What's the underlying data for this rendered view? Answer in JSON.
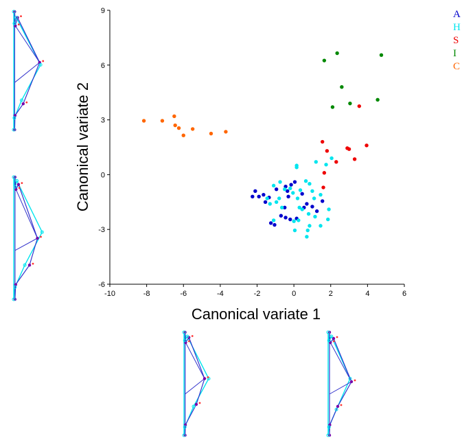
{
  "chart_data": {
    "type": "scatter",
    "title": "",
    "xlabel": "Canonical variate 1",
    "ylabel": "Canonical variate 2",
    "xlim": [
      -10,
      6
    ],
    "ylim": [
      -6,
      9
    ],
    "xticks": [
      "-10",
      "-8",
      "-6",
      "-4",
      "-2",
      "0",
      "2",
      "4",
      "6"
    ],
    "yticks": [
      "-6",
      "-3",
      "0",
      "3",
      "6",
      "9"
    ],
    "grid": false,
    "legend_position": "top-right",
    "series": [
      {
        "name": "A",
        "color": "#0000cc",
        "points": [
          [
            -2.1,
            -0.9
          ],
          [
            -2.25,
            -1.2
          ],
          [
            -1.9,
            -1.2
          ],
          [
            -1.65,
            -1.1
          ],
          [
            -1.35,
            -1.25
          ],
          [
            -1.55,
            -1.5
          ],
          [
            -1.25,
            -2.65
          ],
          [
            -1.05,
            -2.75
          ],
          [
            -0.95,
            -0.8
          ],
          [
            -0.7,
            -2.25
          ],
          [
            -0.45,
            -0.65
          ],
          [
            -0.15,
            -0.55
          ],
          [
            -0.35,
            -0.9
          ],
          [
            -0.5,
            -1.8
          ],
          [
            -0.45,
            -2.35
          ],
          [
            -0.2,
            -2.45
          ],
          [
            0.15,
            -2.4
          ],
          [
            0.05,
            -0.4
          ],
          [
            0.45,
            -1.05
          ],
          [
            0.7,
            -1.6
          ],
          [
            0.55,
            -1.8
          ],
          [
            1.0,
            -1.75
          ],
          [
            1.25,
            -2.0
          ],
          [
            1.55,
            -1.45
          ],
          [
            -0.3,
            -1.2
          ]
        ]
      },
      {
        "name": "H",
        "color": "#00e5ee",
        "points": [
          [
            0.15,
            0.5
          ],
          [
            0.15,
            0.4
          ],
          [
            -0.75,
            -0.4
          ],
          [
            -0.5,
            -0.8
          ],
          [
            -0.8,
            -1.3
          ],
          [
            -1.1,
            -0.6
          ],
          [
            -1.45,
            -1.3
          ],
          [
            -1.3,
            -1.6
          ],
          [
            -1.1,
            -2.5
          ],
          [
            -0.65,
            -1.8
          ],
          [
            -0.2,
            -0.75
          ],
          [
            -0.05,
            -1.0
          ],
          [
            0.2,
            -1.3
          ],
          [
            0.35,
            -0.85
          ],
          [
            0.65,
            -0.35
          ],
          [
            0.85,
            -0.5
          ],
          [
            1.0,
            -0.9
          ],
          [
            1.1,
            -1.3
          ],
          [
            0.3,
            -1.8
          ],
          [
            0.45,
            -1.9
          ],
          [
            0.8,
            -2.15
          ],
          [
            1.15,
            -2.3
          ],
          [
            0.85,
            -2.8
          ],
          [
            0.75,
            -3.05
          ],
          [
            0.7,
            -3.4
          ],
          [
            0.0,
            -2.55
          ],
          [
            0.05,
            -3.05
          ],
          [
            0.25,
            -2.5
          ],
          [
            1.45,
            -1.1
          ],
          [
            1.2,
            0.7
          ],
          [
            1.75,
            0.55
          ],
          [
            1.9,
            -1.9
          ],
          [
            1.85,
            -2.45
          ],
          [
            1.45,
            -2.8
          ],
          [
            2.05,
            0.9
          ],
          [
            -0.95,
            -1.5
          ]
        ]
      },
      {
        "name": "S",
        "color": "#ee0000",
        "points": [
          [
            1.55,
            1.8
          ],
          [
            1.8,
            1.3
          ],
          [
            1.65,
            0.1
          ],
          [
            1.6,
            -0.7
          ],
          [
            2.3,
            0.7
          ],
          [
            2.9,
            1.45
          ],
          [
            3.0,
            1.4
          ],
          [
            3.3,
            0.85
          ],
          [
            3.95,
            1.6
          ],
          [
            3.55,
            3.75
          ]
        ]
      },
      {
        "name": "I",
        "color": "#008800",
        "points": [
          [
            1.65,
            6.25
          ],
          [
            2.35,
            6.65
          ],
          [
            4.75,
            6.55
          ],
          [
            2.6,
            4.8
          ],
          [
            3.05,
            3.9
          ],
          [
            2.1,
            3.7
          ],
          [
            4.55,
            4.1
          ]
        ]
      },
      {
        "name": "C",
        "color": "#ff6600",
        "points": [
          [
            -8.15,
            2.95
          ],
          [
            -7.15,
            2.95
          ],
          [
            -6.5,
            3.2
          ],
          [
            -6.45,
            2.7
          ],
          [
            -6.25,
            2.55
          ],
          [
            -6.0,
            2.15
          ],
          [
            -5.5,
            2.5
          ],
          [
            -4.5,
            2.25
          ],
          [
            -3.7,
            2.35
          ]
        ]
      }
    ]
  },
  "legend": [
    {
      "label": "A",
      "color": "#0000cc"
    },
    {
      "label": "H",
      "color": "#00e5ee"
    },
    {
      "label": "S",
      "color": "#ee0000"
    },
    {
      "label": "I",
      "color": "#008800"
    },
    {
      "label": "C",
      "color": "#ff6600"
    }
  ],
  "colors": {
    "consensus": "#00e5ee",
    "variant": "#3333cc",
    "marker_red": "#ff3333",
    "marker_purple": "#7700aa"
  },
  "shape_glyphs": {
    "left_top": {
      "label": "Shape diagram (left, upper)",
      "consensus": [
        [
          0,
          0
        ],
        [
          0.02,
          0.1
        ],
        [
          0.08,
          0.05
        ],
        [
          0.85,
          0.45
        ],
        [
          0.25,
          0.75
        ],
        [
          0.02,
          0.9
        ],
        [
          0,
          1
        ],
        [
          0,
          0
        ]
      ],
      "variant": [
        [
          0.03,
          0
        ],
        [
          0.05,
          0.12
        ],
        [
          0.12,
          0.05
        ],
        [
          0.82,
          0.43
        ],
        [
          0.3,
          0.78
        ],
        [
          0.04,
          0.88
        ],
        [
          0.03,
          1
        ],
        [
          0.03,
          0
        ]
      ]
    },
    "left_bottom": {
      "label": "Shape diagram (left, lower)",
      "consensus": [
        [
          0,
          0
        ],
        [
          0.04,
          0.08
        ],
        [
          0.1,
          0.03
        ],
        [
          0.9,
          0.45
        ],
        [
          0.35,
          0.72
        ],
        [
          0.04,
          0.9
        ],
        [
          0,
          1
        ],
        [
          0,
          0
        ]
      ],
      "variant": [
        [
          0.04,
          0
        ],
        [
          0.07,
          0.1
        ],
        [
          0.15,
          0.06
        ],
        [
          0.75,
          0.5
        ],
        [
          0.5,
          0.72
        ],
        [
          0.06,
          0.88
        ],
        [
          0.04,
          1
        ],
        [
          0.04,
          0
        ]
      ]
    },
    "bottom_center": {
      "label": "Shape diagram (bottom, centre)",
      "consensus": [
        [
          0,
          0
        ],
        [
          0.03,
          0.08
        ],
        [
          0.12,
          0.04
        ],
        [
          0.9,
          0.45
        ],
        [
          0.35,
          0.72
        ],
        [
          0.03,
          0.92
        ],
        [
          0,
          1
        ],
        [
          0,
          0
        ]
      ],
      "variant": [
        [
          0.04,
          0
        ],
        [
          0.06,
          0.1
        ],
        [
          0.18,
          0.05
        ],
        [
          0.75,
          0.45
        ],
        [
          0.45,
          0.7
        ],
        [
          0.05,
          0.9
        ],
        [
          0.04,
          1
        ],
        [
          0.04,
          0
        ]
      ]
    },
    "bottom_right": {
      "label": "Shape diagram (bottom, right)",
      "consensus": [
        [
          0,
          0
        ],
        [
          0.03,
          0.08
        ],
        [
          0.12,
          0.04
        ],
        [
          0.8,
          0.45
        ],
        [
          0.3,
          0.75
        ],
        [
          0.03,
          0.92
        ],
        [
          0,
          1
        ],
        [
          0,
          0
        ]
      ],
      "variant": [
        [
          0.05,
          0
        ],
        [
          0.08,
          0.1
        ],
        [
          0.2,
          0.06
        ],
        [
          0.85,
          0.48
        ],
        [
          0.35,
          0.72
        ],
        [
          0.06,
          0.9
        ],
        [
          0.05,
          1
        ],
        [
          0.05,
          0
        ]
      ]
    }
  }
}
